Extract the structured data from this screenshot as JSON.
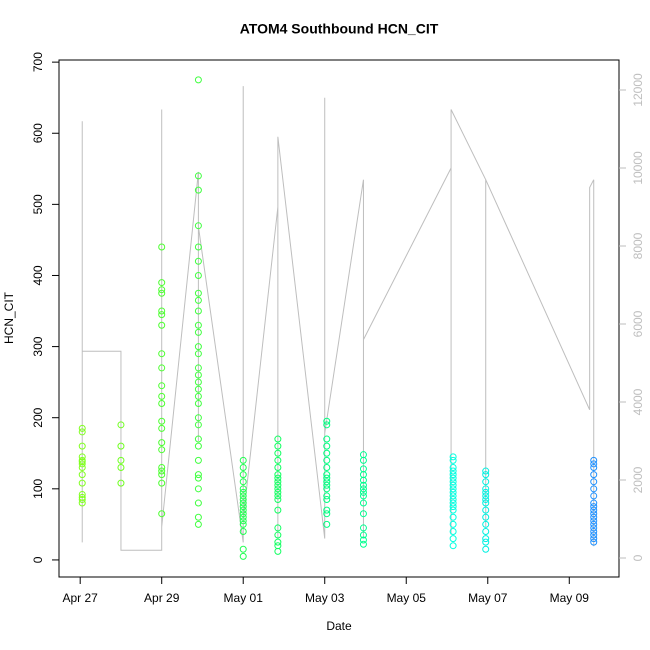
{
  "chart_data": {
    "type": "scatter",
    "title": "ATOM4 Southbound HCN_CIT",
    "xlabel": "Date",
    "ylabel": "HCN_CIT",
    "xlim": [
      -0.52,
      13.22
    ],
    "ylim": [
      -24,
      703
    ],
    "y2lim": [
      -487,
      12769
    ],
    "xticks": [
      {
        "value": 0,
        "label": "Apr 27"
      },
      {
        "value": 2,
        "label": "Apr 29"
      },
      {
        "value": 4,
        "label": "May 01"
      },
      {
        "value": 6,
        "label": "May 03"
      },
      {
        "value": 8,
        "label": "May 05"
      },
      {
        "value": 10,
        "label": "May 07"
      },
      {
        "value": 12,
        "label": "May 09"
      }
    ],
    "yticks": [
      0,
      100,
      200,
      300,
      400,
      500,
      600,
      700
    ],
    "y2ticks": [
      0,
      2000,
      4000,
      6000,
      8000,
      10000,
      12000
    ],
    "series": [
      {
        "type": "line",
        "axis": "y2",
        "color": "#bebebe",
        "x": [
          0.05,
          0.05,
          0.05,
          0.05,
          1.0,
          1.0,
          2.0,
          2.0,
          2.0,
          2.9,
          2.9,
          2.9,
          4.0,
          4.0,
          4.0,
          4.85,
          4.85,
          4.85,
          6.0,
          6.0,
          6.0,
          6.95,
          6.95,
          6.95,
          9.1,
          9.1,
          9.1,
          9.95,
          9.95,
          9.95,
          12.5,
          12.5,
          12.6,
          12.6
        ],
        "values": [
          400,
          11200,
          5300,
          5300,
          5300,
          200,
          200,
          11500,
          800,
          9900,
          3000,
          8500,
          400,
          12100,
          1000,
          9000,
          500,
          10800,
          500,
          11800,
          3200,
          9700,
          500,
          5600,
          10000,
          600,
          11500,
          9700,
          800,
          9700,
          3800,
          9500,
          9700,
          300
        ]
      },
      {
        "color": "#80ff20",
        "x": 0.05,
        "values": [
          185,
          180,
          160,
          145,
          140,
          138,
          135,
          130,
          120,
          108,
          92,
          88,
          85,
          80
        ]
      },
      {
        "color": "#70ff20",
        "x": 1.0,
        "values": [
          190,
          160,
          140,
          130,
          108
        ]
      },
      {
        "color": "#4cff30",
        "x": 2.0,
        "values": [
          440,
          390,
          380,
          375,
          350,
          345,
          330,
          290,
          270,
          245,
          230,
          220,
          195,
          185,
          165,
          155,
          130,
          125,
          120,
          108,
          65
        ]
      },
      {
        "color": "#40ff40",
        "x": 2.9,
        "values": [
          675,
          540,
          520,
          470,
          440,
          420,
          400,
          375,
          365,
          350,
          330,
          320,
          300,
          290,
          270,
          260,
          250,
          240,
          230,
          220,
          200,
          190,
          170,
          160,
          140,
          120,
          115,
          100,
          80,
          60,
          50
        ]
      },
      {
        "color": "#20ff50",
        "x": 4.0,
        "values": [
          140,
          130,
          120,
          110,
          100,
          95,
          90,
          85,
          80,
          75,
          70,
          65,
          60,
          55,
          50,
          40,
          15,
          5
        ]
      },
      {
        "color": "#10ff60",
        "x": 4.85,
        "values": [
          170,
          160,
          150,
          140,
          130,
          120,
          115,
          110,
          105,
          100,
          95,
          90,
          85,
          70,
          45,
          35,
          25,
          20,
          12
        ]
      },
      {
        "color": "#00ff80",
        "x": 6.05,
        "values": [
          195,
          190,
          170,
          160,
          150,
          140,
          130,
          120,
          115,
          110,
          105,
          100,
          90,
          85,
          70,
          65,
          50
        ]
      },
      {
        "color": "#00ff90",
        "x": 6.95,
        "values": [
          148,
          140,
          128,
          120,
          112,
          105,
          100,
          95,
          90,
          80,
          65,
          45,
          35,
          28,
          22
        ]
      },
      {
        "color": "#00ffe0",
        "x": 9.15,
        "values": [
          145,
          140,
          130,
          125,
          120,
          115,
          110,
          105,
          100,
          95,
          90,
          85,
          80,
          75,
          70,
          60,
          50,
          40,
          30,
          20
        ]
      },
      {
        "color": "#00f0e0",
        "x": 9.95,
        "values": [
          125,
          120,
          110,
          100,
          95,
          90,
          85,
          80,
          70,
          60,
          50,
          40,
          30,
          25,
          15
        ]
      },
      {
        "color": "#1e90ff",
        "x": 12.6,
        "values": [
          140,
          135,
          130,
          120,
          110,
          100,
          90,
          80,
          75,
          70,
          65,
          60,
          55,
          50,
          45,
          40,
          35,
          30,
          25
        ]
      }
    ]
  }
}
